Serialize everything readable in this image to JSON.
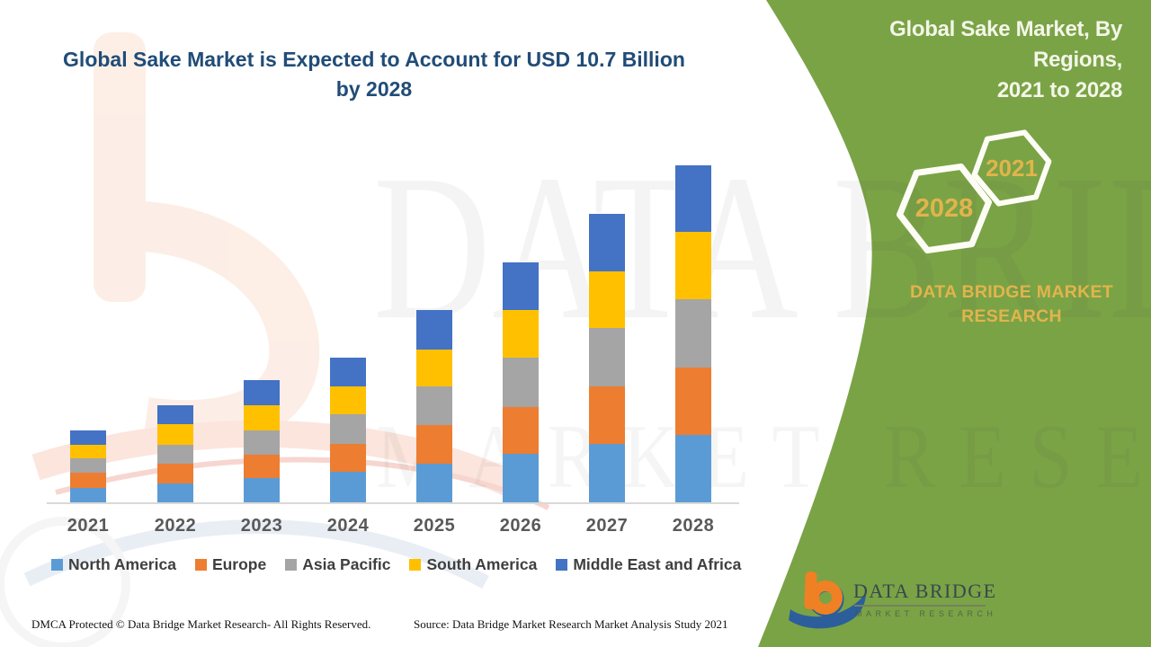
{
  "main_title": {
    "lines": [
      "Global Sake Market is Expected to Account for USD 10.7 Billion",
      "by 2028"
    ]
  },
  "side_panel": {
    "title_lines": [
      "Global Sake Market, By Regions,",
      "2021 to 2028"
    ],
    "hexagon_years": [
      "2021",
      "2028"
    ],
    "brand_lines": [
      "DATA BRIDGE MARKET",
      "RESEARCH"
    ],
    "panel_color": "#7AA346",
    "gold_color": "#E2B44C"
  },
  "chart_data": {
    "type": "bar",
    "stacked": true,
    "unit": "USD Billion",
    "title": "Global Sake Market is Expected to Account for USD 10.7 Billion by 2028",
    "categories": [
      "2021",
      "2022",
      "2023",
      "2024",
      "2025",
      "2026",
      "2027",
      "2028"
    ],
    "series": [
      {
        "name": "North America",
        "color": "#5B9BD5",
        "values": [
          0.45,
          0.59,
          0.76,
          0.97,
          1.24,
          1.55,
          1.86,
          2.14
        ]
      },
      {
        "name": "Europe",
        "color": "#ED7D31",
        "values": [
          0.48,
          0.63,
          0.76,
          0.89,
          1.22,
          1.49,
          1.83,
          2.15
        ]
      },
      {
        "name": "Asia Pacific",
        "color": "#A5A5A5",
        "values": [
          0.46,
          0.6,
          0.76,
          0.94,
          1.23,
          1.55,
          1.85,
          2.16
        ]
      },
      {
        "name": "South America",
        "color": "#FFC000",
        "values": [
          0.45,
          0.65,
          0.8,
          0.88,
          1.17,
          1.51,
          1.81,
          2.13
        ]
      },
      {
        "name": "Middle East and Africa",
        "color": "#4472C4",
        "values": [
          0.44,
          0.61,
          0.8,
          0.91,
          1.25,
          1.52,
          1.81,
          2.12
        ]
      }
    ],
    "totals": [
      2.28,
      3.08,
      3.88,
      4.59,
      6.11,
      7.62,
      9.16,
      10.7
    ],
    "xlabel": "",
    "ylabel": "",
    "y_axis_visible": false,
    "gridlines": false,
    "legend_position": "bottom"
  },
  "footer": {
    "dmca": "DMCA Protected © Data Bridge Market Research- All Rights Reserved.",
    "source": "Source: Data Bridge Market Research Market Analysis Study 2021"
  },
  "logo": {
    "title": "DATA BRIDGE",
    "subtitle": "MARKET RESEARCH"
  },
  "watermark": {
    "line1": "DATA BRIDGE",
    "line2": "MARKET RESEARCH"
  }
}
